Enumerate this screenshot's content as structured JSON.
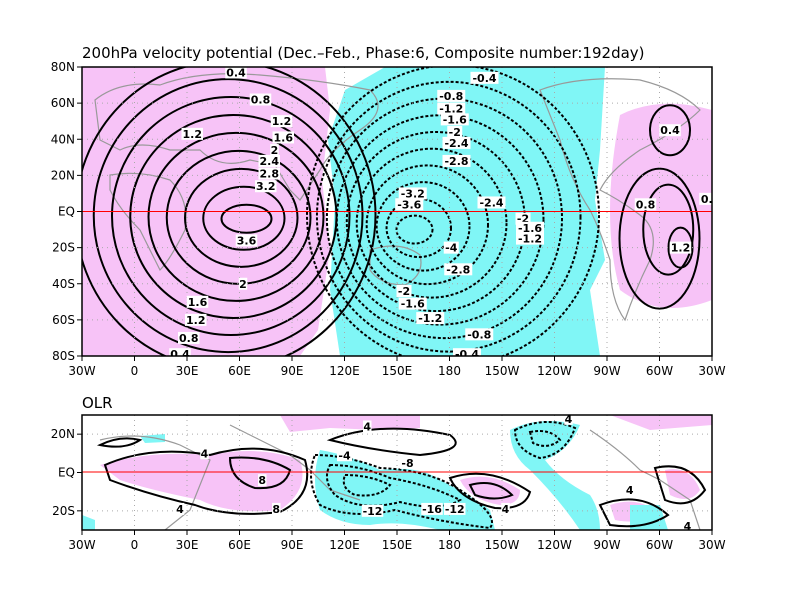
{
  "chart_data": [
    {
      "type": "contour-map",
      "title": "200hPa velocity potential (Dec.–Feb., Phase:6, Composite number:192day)",
      "x_ticks": [
        "30W",
        "0",
        "30E",
        "60E",
        "90E",
        "120E",
        "150E",
        "180",
        "150W",
        "120W",
        "90W",
        "60W",
        "30W"
      ],
      "y_ticks": [
        "80N",
        "60N",
        "40N",
        "20N",
        "EQ",
        "20S",
        "40S",
        "60S",
        "80S"
      ],
      "lon_range": [
        -30,
        330
      ],
      "lat_range": [
        -80,
        80
      ],
      "shading": {
        "positive_color": "#f7c3f7",
        "negative_color": "#80f6f6"
      },
      "contour_levels_positive": [
        0.4,
        0.8,
        1.2,
        1.6,
        2,
        2.4,
        2.8,
        3.2,
        3.6
      ],
      "contour_levels_negative": [
        -0.4,
        -0.8,
        -1.2,
        -1.6,
        -2,
        -2.4,
        -2.8,
        -3.2,
        -3.6,
        -4
      ],
      "contour_labels": [
        {
          "lon": 58,
          "lat": 77,
          "text": "0.4"
        },
        {
          "lon": 72,
          "lat": 62,
          "text": "0.8"
        },
        {
          "lon": 33,
          "lat": 43,
          "text": "1.2"
        },
        {
          "lon": 84,
          "lat": 50,
          "text": "1.2"
        },
        {
          "lon": 85,
          "lat": 41,
          "text": "1.6"
        },
        {
          "lon": 80,
          "lat": 34,
          "text": "2"
        },
        {
          "lon": 77,
          "lat": 28,
          "text": "2.4"
        },
        {
          "lon": 77,
          "lat": 21,
          "text": "2.8"
        },
        {
          "lon": 75,
          "lat": 14,
          "text": "3.2"
        },
        {
          "lon": 64,
          "lat": -16,
          "text": "3.6"
        },
        {
          "lon": 62,
          "lat": -40,
          "text": "2"
        },
        {
          "lon": 36,
          "lat": -50,
          "text": "1.6"
        },
        {
          "lon": 35,
          "lat": -60,
          "text": "1.2"
        },
        {
          "lon": 31,
          "lat": -70,
          "text": "0.8"
        },
        {
          "lon": 26,
          "lat": -79,
          "text": "0.4"
        },
        {
          "lon": 200,
          "lat": 74,
          "text": "-0.4"
        },
        {
          "lon": 181,
          "lat": 64,
          "text": "-0.8"
        },
        {
          "lon": 181,
          "lat": 57,
          "text": "-1.2"
        },
        {
          "lon": 183,
          "lat": 51,
          "text": "-1.6"
        },
        {
          "lon": 183,
          "lat": 44,
          "text": "-2"
        },
        {
          "lon": 184,
          "lat": 38,
          "text": "-2.4"
        },
        {
          "lon": 184,
          "lat": 28,
          "text": "-2.8"
        },
        {
          "lon": 159,
          "lat": 10,
          "text": "-3.2"
        },
        {
          "lon": 157,
          "lat": 4,
          "text": "-3.6"
        },
        {
          "lon": 181,
          "lat": -20,
          "text": "-4"
        },
        {
          "lon": 185,
          "lat": -32,
          "text": "-2.8"
        },
        {
          "lon": 154,
          "lat": -44,
          "text": "-2"
        },
        {
          "lon": 159,
          "lat": -51,
          "text": "-1.6"
        },
        {
          "lon": 169,
          "lat": -59,
          "text": "-1.2"
        },
        {
          "lon": 197,
          "lat": -68,
          "text": "-0.8"
        },
        {
          "lon": 190,
          "lat": -79,
          "text": "-0.4"
        },
        {
          "lon": 204,
          "lat": 5,
          "text": "-2.4"
        },
        {
          "lon": 222,
          "lat": -4,
          "text": "-2"
        },
        {
          "lon": 226,
          "lat": -9,
          "text": "-1.6"
        },
        {
          "lon": 226,
          "lat": -15,
          "text": "-1.2"
        },
        {
          "lon": 306,
          "lat": 45,
          "text": "0.4"
        },
        {
          "lon": 292,
          "lat": 4,
          "text": "0.8"
        },
        {
          "lon": 327,
          "lat": 7,
          "text": "0."
        },
        {
          "lon": 312,
          "lat": -20,
          "text": "1.2"
        }
      ]
    },
    {
      "type": "contour-map",
      "title": "OLR",
      "x_ticks": [
        "30W",
        "0",
        "30E",
        "60E",
        "90E",
        "120E",
        "150E",
        "180",
        "150W",
        "120W",
        "90W",
        "60W",
        "30W"
      ],
      "y_ticks": [
        "20N",
        "EQ",
        "20S"
      ],
      "lon_range": [
        -30,
        330
      ],
      "lat_range": [
        -30,
        30
      ],
      "contour_labels": [
        {
          "lon": 40,
          "lat": 10,
          "text": "4"
        },
        {
          "lon": 73,
          "lat": -4,
          "text": "8"
        },
        {
          "lon": 81,
          "lat": -19,
          "text": "8"
        },
        {
          "lon": 26,
          "lat": -19,
          "text": "4"
        },
        {
          "lon": 133,
          "lat": 24,
          "text": "4"
        },
        {
          "lon": 120,
          "lat": 9,
          "text": "-4"
        },
        {
          "lon": 156,
          "lat": 5,
          "text": "-8"
        },
        {
          "lon": 170,
          "lat": -19,
          "text": "-16"
        },
        {
          "lon": 183,
          "lat": -19,
          "text": "-12"
        },
        {
          "lon": 136,
          "lat": -20,
          "text": "-12"
        },
        {
          "lon": 212,
          "lat": -19,
          "text": "4"
        },
        {
          "lon": 248,
          "lat": 28,
          "text": "4"
        },
        {
          "lon": 283,
          "lat": -9,
          "text": "4"
        },
        {
          "lon": 316,
          "lat": -28,
          "text": "4"
        }
      ]
    }
  ]
}
